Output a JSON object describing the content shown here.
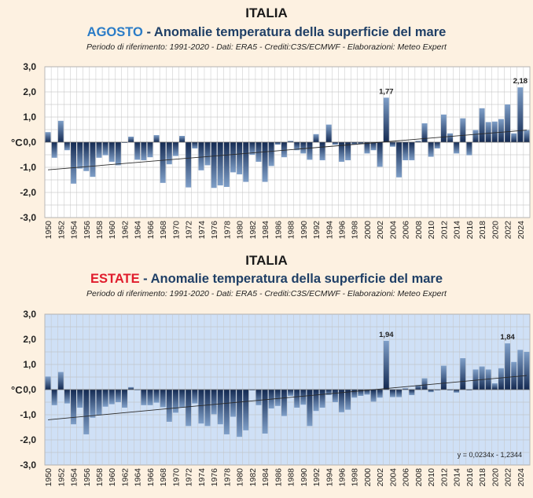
{
  "chart_data": [
    {
      "type": "bar",
      "title": "ITALIA",
      "month_label": "AGOSTO",
      "subtitle_rest": " - Anomalie temperatura della superficie del mare",
      "note": "Periodo di riferimento: 1991-2020 - Dati: ERA5 - Crediti:C3S/ECMWF - Elaborazioni: Meteo Expert",
      "ylabel": "°C",
      "ylim": [
        -3,
        3
      ],
      "yticks": [
        "3,0",
        "2,0",
        "1,0",
        "0,0",
        "-1,0",
        "-2,0",
        "-3,0"
      ],
      "xticks": [
        "1950",
        "1952",
        "1954",
        "1956",
        "1958",
        "1960",
        "1962",
        "1964",
        "1966",
        "1968",
        "1970",
        "1972",
        "1974",
        "1976",
        "1978",
        "1980",
        "1982",
        "1984",
        "1986",
        "1988",
        "1990",
        "1992",
        "1994",
        "1996",
        "1998",
        "2000",
        "2002",
        "2004",
        "2006",
        "2008",
        "2010",
        "2012",
        "2014",
        "2016",
        "2018",
        "2020",
        "2022",
        "2024"
      ],
      "grid": true,
      "start_year": 1950,
      "values": [
        0.4,
        -0.62,
        0.85,
        -0.32,
        -1.65,
        -1.05,
        -1.15,
        -1.38,
        -0.62,
        -0.52,
        -0.78,
        -0.92,
        0.0,
        0.22,
        -0.7,
        -0.72,
        -0.6,
        0.28,
        -1.62,
        -0.88,
        -0.55,
        0.25,
        -1.8,
        -0.25,
        -1.12,
        -0.92,
        -1.82,
        -1.72,
        -1.78,
        -1.2,
        -1.28,
        -1.58,
        -0.5,
        -0.78,
        -1.58,
        -0.95,
        -0.1,
        -0.6,
        0.05,
        -0.32,
        -0.45,
        -0.7,
        0.32,
        -0.72,
        0.7,
        -0.1,
        -0.78,
        -0.72,
        -0.1,
        -0.08,
        -0.45,
        -0.32,
        -0.98,
        1.77,
        -0.18,
        -1.4,
        -0.72,
        -0.72,
        0.05,
        0.75,
        -0.58,
        -0.25,
        1.1,
        0.35,
        -0.45,
        0.95,
        -0.52,
        0.48,
        1.35,
        0.8,
        0.82,
        0.92,
        1.5,
        0.35,
        2.18,
        0.48
      ],
      "data_labels": [
        {
          "year": 2003,
          "text": "1,77"
        },
        {
          "year": 2024,
          "text": "2,18"
        }
      ],
      "trend": [
        -1.1,
        0.48
      ],
      "colors": {
        "panel_bg": "#ffffff",
        "month": "#2a7cc7",
        "bar_top": "#7f9fc8",
        "bar_bottom": "#142a52"
      }
    },
    {
      "type": "bar",
      "title": "ITALIA",
      "month_label": "ESTATE",
      "subtitle_rest": " - Anomalie temperatura della superficie del mare",
      "note": "Periodo di riferimento: 1991-2020 - Dati: ERA5 - Crediti:C3S/ECMWF - Elaborazioni: Meteo Expert",
      "ylabel": "°C",
      "ylim": [
        -3,
        3
      ],
      "yticks": [
        "3,0",
        "2,0",
        "1,0",
        "0,0",
        "-1,0",
        "-2,0",
        "-3,0"
      ],
      "xticks": [
        "1950",
        "1952",
        "1954",
        "1956",
        "1958",
        "1960",
        "1962",
        "1964",
        "1966",
        "1968",
        "1970",
        "1972",
        "1974",
        "1976",
        "1978",
        "1980",
        "1982",
        "1984",
        "1986",
        "1988",
        "1990",
        "1992",
        "1994",
        "1996",
        "1998",
        "2000",
        "2002",
        "2004",
        "2006",
        "2008",
        "2010",
        "2012",
        "2014",
        "2016",
        "2018",
        "2020",
        "2022",
        "2024"
      ],
      "grid": true,
      "start_year": 1950,
      "values": [
        0.52,
        -0.62,
        0.7,
        -0.55,
        -1.38,
        -0.72,
        -1.78,
        -1.12,
        -1.02,
        -0.68,
        -0.58,
        -0.5,
        -0.72,
        0.1,
        -0.02,
        -0.62,
        -0.62,
        -0.52,
        -0.7,
        -1.28,
        -0.92,
        -0.72,
        -1.45,
        -0.55,
        -1.35,
        -1.45,
        -0.98,
        -1.38,
        -1.78,
        -1.08,
        -1.88,
        -1.62,
        0.0,
        -0.62,
        -1.75,
        -0.75,
        -0.65,
        -1.05,
        -0.25,
        -0.72,
        -0.6,
        -1.45,
        -0.85,
        -0.72,
        -0.22,
        -0.5,
        -0.9,
        -0.8,
        -0.32,
        -0.25,
        -0.2,
        -0.48,
        -0.32,
        1.94,
        -0.3,
        -0.3,
        0.05,
        -0.22,
        0.18,
        0.45,
        -0.1,
        0.0,
        0.95,
        0.0,
        -0.12,
        1.25,
        0.0,
        0.8,
        0.92,
        0.8,
        0.25,
        0.85,
        1.84,
        1.1,
        1.58,
        1.5
      ],
      "data_labels": [
        {
          "year": 2003,
          "text": "1,94"
        },
        {
          "year": 2022,
          "text": "1,84"
        }
      ],
      "trend": [
        -1.2,
        0.56
      ],
      "equation": "y = 0,0234x - 1,2344",
      "colors": {
        "panel_bg": "#cfe0f6",
        "month": "#e01c2c",
        "bar_top": "#7f9fc8",
        "bar_bottom": "#142a52"
      }
    }
  ]
}
